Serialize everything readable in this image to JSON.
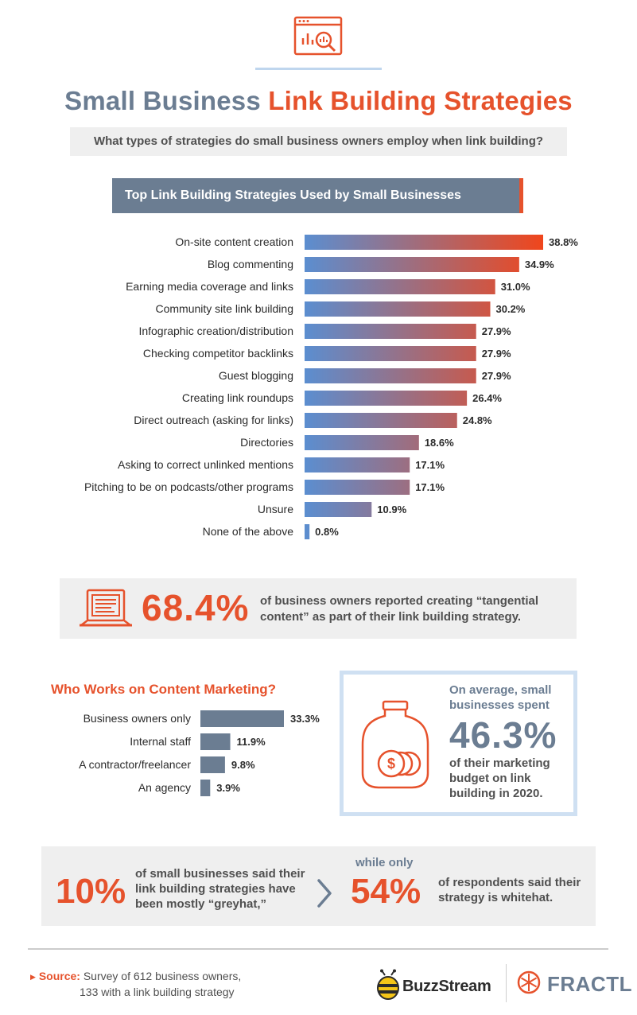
{
  "title": {
    "part1": "Small Business",
    "part2": "Link Building Strategies"
  },
  "subtitle": "What types of strategies do small business owners employ when link building?",
  "banner": "Top Link Building Strategies Used by Small Businesses",
  "colors": {
    "orange": "#e6522c",
    "slate": "#6b7d92",
    "blue": "#5b8ed0",
    "light_blue": "#cfe0f2",
    "grey_bg": "#efefef"
  },
  "icons": {
    "top": "browser-analytics-icon",
    "stat": "laptop-content-icon",
    "jar": "money-jar-icon",
    "chevron": "chevron-right-icon",
    "buzzstream": "bee-icon",
    "fractl": "snowflake-icon"
  },
  "chart_data": [
    {
      "type": "bar",
      "orientation": "horizontal",
      "title": "Top Link Building Strategies Used by Small Businesses",
      "categories": [
        "On-site content creation",
        "Blog commenting",
        "Earning media coverage and links",
        "Community site link building",
        "Infographic creation/distribution",
        "Checking competitor backlinks",
        "Guest blogging",
        "Creating link roundups",
        "Direct outreach (asking for links)",
        "Directories",
        "Asking to correct unlinked mentions",
        "Pitching to be on podcasts/other programs",
        "Unsure",
        "None of the above"
      ],
      "values": [
        38.8,
        34.9,
        31.0,
        30.2,
        27.9,
        27.9,
        27.9,
        26.4,
        24.8,
        18.6,
        17.1,
        17.1,
        10.9,
        0.8
      ],
      "labels": [
        "38.8%",
        "34.9%",
        "31.0%",
        "30.2%",
        "27.9%",
        "27.9%",
        "27.9%",
        "26.4%",
        "24.8%",
        "18.6%",
        "17.1%",
        "17.1%",
        "10.9%",
        "0.8%"
      ],
      "xlim": [
        0,
        38.8
      ],
      "grid": false,
      "color": "gradient blue to orange"
    },
    {
      "type": "bar",
      "orientation": "horizontal",
      "title": "Who Works on Content Marketing?",
      "categories": [
        "Business owners only",
        "Internal staff",
        "A contractor/freelancer",
        "An agency"
      ],
      "values": [
        33.3,
        11.9,
        9.8,
        3.9
      ],
      "labels": [
        "33.3%",
        "11.9%",
        "9.8%",
        "3.9%"
      ],
      "xlim": [
        0,
        33.3
      ],
      "grid": false,
      "color": "#6b7d92"
    }
  ],
  "stat_tangential": {
    "value": "68.4%",
    "text": "of business owners reported creating “tangential content” as part of their link building strategy."
  },
  "spend": {
    "pre": "On average, small businesses spent",
    "value": "46.3%",
    "post": "of their marketing budget on link building in 2020."
  },
  "greyhat": {
    "value": "10%",
    "text": "of small businesses said their link building strategies have been mostly “greyhat,”"
  },
  "whitehat": {
    "connector": "while only",
    "value": "54%",
    "text": "of respondents said their strategy is whitehat."
  },
  "footer": {
    "source_label": "Source:",
    "source_line1": "Survey of 612 business owners,",
    "source_line2": "133 with a link building strategy",
    "brand1": "BuzzStream",
    "brand2": "FRACTL"
  }
}
